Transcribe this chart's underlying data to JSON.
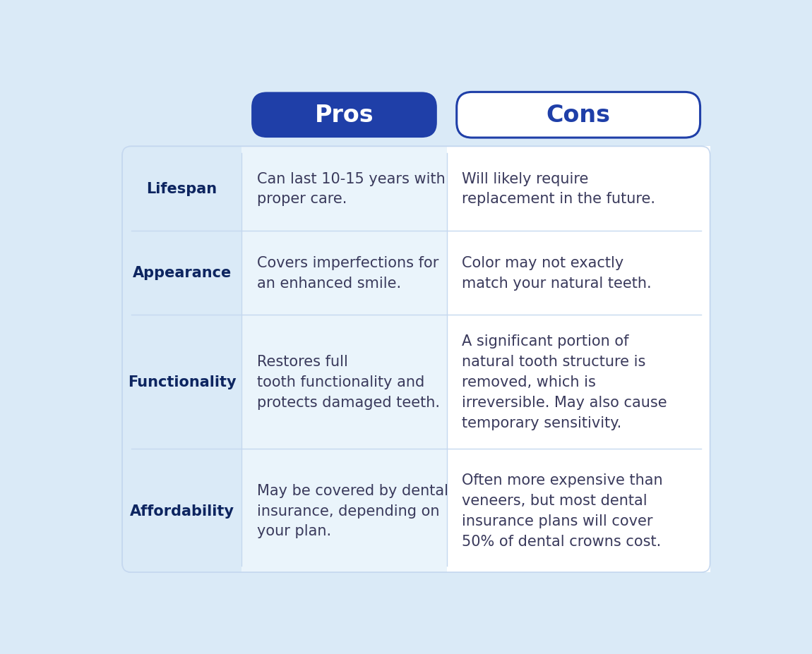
{
  "bg_color": "#daeaf7",
  "table_bg": "#ffffff",
  "header_pros_bg": "#1f3fa8",
  "header_cons_bg": "#ffffff",
  "header_pros_text_color": "#ffffff",
  "header_cons_text_color": "#1f3fa8",
  "row_label_color": "#0d2560",
  "pros_text_color": "#3a3a5c",
  "cons_text_color": "#3a3a5c",
  "divider_color": "#c5d8ef",
  "label_col_bg": "#daeaf7",
  "pros_col_bg": "#eaf4fb",
  "cons_col_bg": "#ffffff",
  "rows": [
    {
      "label": "Lifespan",
      "pro": "Can last 10-15 years with\nproper care.",
      "con": "Will likely require\nreplacement in the future."
    },
    {
      "label": "Appearance",
      "pro": "Covers imperfections for\nan enhanced smile.",
      "con": "Color may not exactly\nmatch your natural teeth."
    },
    {
      "label": "Functionality",
      "pro": "Restores full\ntooth functionality and\nprotects damaged teeth.",
      "con": "A significant portion of\nnatural tooth structure is\nremoved, which is\nirreversible. May also cause\ntemporary sensitivity."
    },
    {
      "label": "Affordability",
      "pro": "May be covered by dental\ninsurance, depending on\nyour plan.",
      "con": "Often more expensive than\nveneers, but most dental\ninsurance plans will cover\n50% of dental crowns cost."
    }
  ],
  "pros_header": "Pros",
  "cons_header": "Cons",
  "header_fontsize": 24,
  "label_fontsize": 15,
  "cell_fontsize": 15
}
